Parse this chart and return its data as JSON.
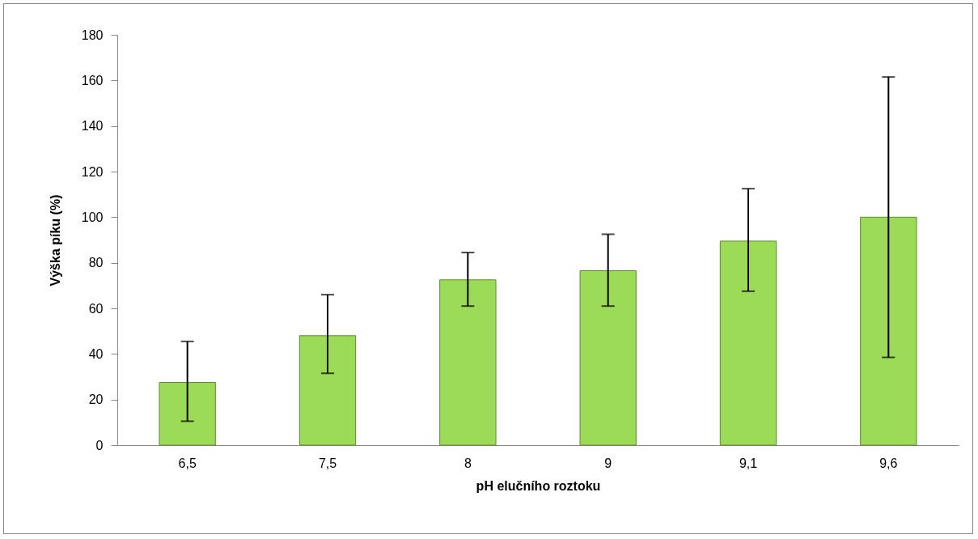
{
  "chart_data": {
    "type": "bar",
    "xlabel": "pH elučního roztoku",
    "ylabel": "Výška píku (%)",
    "categories": [
      "6,5",
      "7,5",
      "8",
      "9",
      "9,1",
      "9,6"
    ],
    "values": [
      27.5,
      48,
      72.5,
      76.5,
      89.5,
      100
    ],
    "errors": [
      [
        10.5,
        45.5
      ],
      [
        31.5,
        66
      ],
      [
        61,
        84.5
      ],
      [
        61,
        92.5
      ],
      [
        67.5,
        112.5
      ],
      [
        38.5,
        161.5
      ]
    ],
    "color": "#9bdb57",
    "ylim": [
      0,
      180
    ],
    "yticks": [
      0,
      20,
      40,
      60,
      80,
      100,
      120,
      140,
      160,
      180
    ],
    "grid": false
  }
}
